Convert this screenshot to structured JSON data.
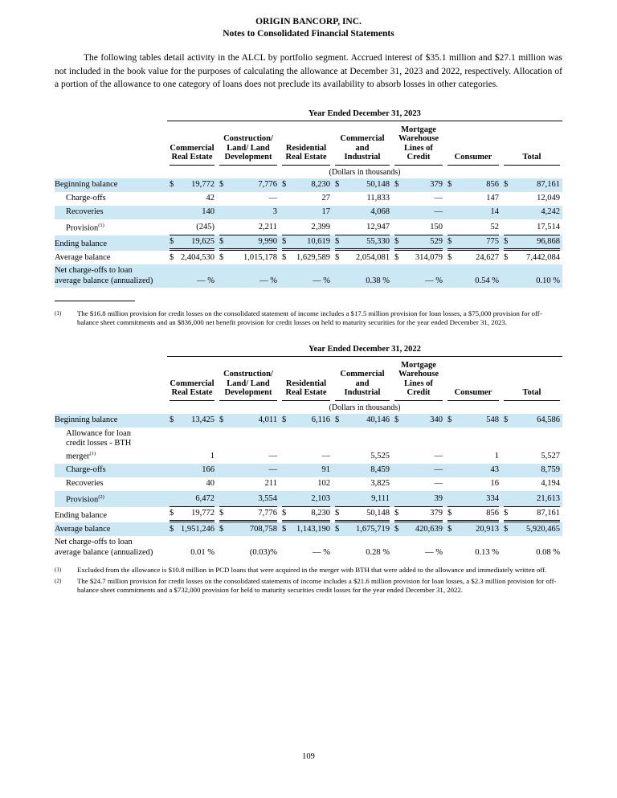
{
  "doc": {
    "company": "ORIGIN BANCORP, INC.",
    "heading": "Notes to Consolidated Financial Statements",
    "paragraph": "The following tables detail activity in the ALCL by portfolio segment. Accrued interest of $35.1 million and $27.1 million was not included in the book value for the purposes of calculating the allowance at December 31, 2023 and 2022, respectively. Allocation of a portion of the allowance to one category of loans does not preclude its availability to absorb losses in other categories.",
    "dollar": "$",
    "page_number": "109",
    "shaded_row_color": "#cde8f5"
  },
  "columns": [
    "Commercial\nReal Estate",
    "Construction/\nLand/ Land\nDevelopment",
    "Residential\nReal Estate",
    "Commercial\nand\nIndustrial",
    "Mortgage\nWarehouse\nLines of\nCredit",
    "Consumer",
    "Total"
  ],
  "dollars_note": "(Dollars in thousands)",
  "table_2023": {
    "caption": "Year Ended December 31, 2023",
    "rows": [
      {
        "label": "Beginning balance",
        "sup": "",
        "indent": false,
        "shaded": true,
        "dollar": true,
        "underline": "none",
        "values": [
          "19,772",
          "7,776",
          "8,230",
          "50,148",
          "379",
          "856",
          "87,161"
        ]
      },
      {
        "label": "Charge-offs",
        "sup": "",
        "indent": true,
        "shaded": false,
        "dollar": false,
        "underline": "none",
        "values": [
          "42",
          "—",
          "27",
          "11,833",
          "—",
          "147",
          "12,049"
        ]
      },
      {
        "label": "Recoveries",
        "sup": "",
        "indent": true,
        "shaded": true,
        "dollar": false,
        "underline": "none",
        "values": [
          "140",
          "3",
          "17",
          "4,068",
          "—",
          "14",
          "4,242"
        ]
      },
      {
        "label": "Provision",
        "sup": "(1)",
        "indent": true,
        "shaded": false,
        "dollar": false,
        "underline": "single",
        "values": [
          "(245)",
          "2,211",
          "2,399",
          "12,947",
          "150",
          "52",
          "17,514"
        ]
      },
      {
        "label": "Ending balance",
        "sup": "",
        "indent": false,
        "shaded": true,
        "dollar": true,
        "underline": "double",
        "values": [
          "19,625",
          "9,990",
          "10,619",
          "55,330",
          "529",
          "775",
          "96,868"
        ]
      },
      {
        "label": "Average balance",
        "sup": "",
        "indent": false,
        "shaded": false,
        "dollar": true,
        "underline": "none",
        "values": [
          "2,404,530",
          "1,015,178",
          "1,629,589",
          "2,054,081",
          "314,079",
          "24,627",
          "7,442,084"
        ]
      },
      {
        "label": "Net charge-offs to loan\naverage balance (annualized)",
        "sup": "",
        "indent": false,
        "shaded": true,
        "dollar": false,
        "underline": "none",
        "values": [
          "— %",
          "— %",
          "— %",
          "0.38 %",
          "— %",
          "0.54 %",
          "0.10 %"
        ]
      }
    ],
    "footnotes": [
      {
        "marker": "(1)",
        "text": "The $16.8 million provision for credit losses on the consolidated statement of income includes a $17.5 million provision for loan losses, a $75,000 provision for off-balance sheet commitments and an $836,000 net benefit provision for credit losses on held to maturity securities for the year ended December 31, 2023."
      }
    ]
  },
  "table_2022": {
    "caption": "Year Ended December 31, 2022",
    "rows": [
      {
        "label": "Beginning balance",
        "sup": "",
        "indent": false,
        "shaded": true,
        "dollar": true,
        "underline": "none",
        "values": [
          "13,425",
          "4,011",
          "6,116",
          "40,146",
          "340",
          "548",
          "64,586"
        ]
      },
      {
        "label": "Allowance for loan\ncredit losses - BTH\nmerger",
        "sup": "(1)",
        "indent": true,
        "shaded": false,
        "dollar": false,
        "underline": "none",
        "values": [
          "1",
          "—",
          "—",
          "5,525",
          "—",
          "1",
          "5,527"
        ]
      },
      {
        "label": "Charge-offs",
        "sup": "",
        "indent": true,
        "shaded": true,
        "dollar": false,
        "underline": "none",
        "values": [
          "166",
          "—",
          "91",
          "8,459",
          "—",
          "43",
          "8,759"
        ]
      },
      {
        "label": "Recoveries",
        "sup": "",
        "indent": true,
        "shaded": false,
        "dollar": false,
        "underline": "none",
        "values": [
          "40",
          "211",
          "102",
          "3,825",
          "—",
          "16",
          "4,194"
        ]
      },
      {
        "label": "Provision",
        "sup": "(2)",
        "indent": true,
        "shaded": true,
        "dollar": false,
        "underline": "single",
        "values": [
          "6,472",
          "3,554",
          "2,103",
          "9,111",
          "39",
          "334",
          "21,613"
        ]
      },
      {
        "label": "Ending balance",
        "sup": "",
        "indent": false,
        "shaded": false,
        "dollar": true,
        "underline": "double",
        "values": [
          "19,772",
          "7,776",
          "8,230",
          "50,148",
          "379",
          "856",
          "87,161"
        ]
      },
      {
        "label": "Average balance",
        "sup": "",
        "indent": false,
        "shaded": true,
        "dollar": true,
        "underline": "none",
        "values": [
          "1,951,246",
          "708,758",
          "1,143,190",
          "1,675,719",
          "420,639",
          "20,913",
          "5,920,465"
        ]
      },
      {
        "label": "Net charge-offs to loan\naverage balance (annualized)",
        "sup": "",
        "indent": false,
        "shaded": false,
        "dollar": false,
        "underline": "none",
        "values": [
          "0.01 %",
          "(0.03)%",
          "— %",
          "0.28 %",
          "— %",
          "0.13 %",
          "0.08 %"
        ]
      }
    ],
    "footnotes": [
      {
        "marker": "(1)",
        "text": "Excluded from the allowance is $10.8 million in PCD loans that were acquired in the merger with BTH that were added to the allowance and immediately written off."
      },
      {
        "marker": "(2)",
        "text": "The $24.7 million provision for credit losses on the consolidated statements of income includes a $21.6 million provision for loan losses, a $2.3 million provision for off-balance sheet commitments and a $732,000 provision for held to maturity securities credit losses for the year ended December 31, 2022."
      }
    ]
  }
}
